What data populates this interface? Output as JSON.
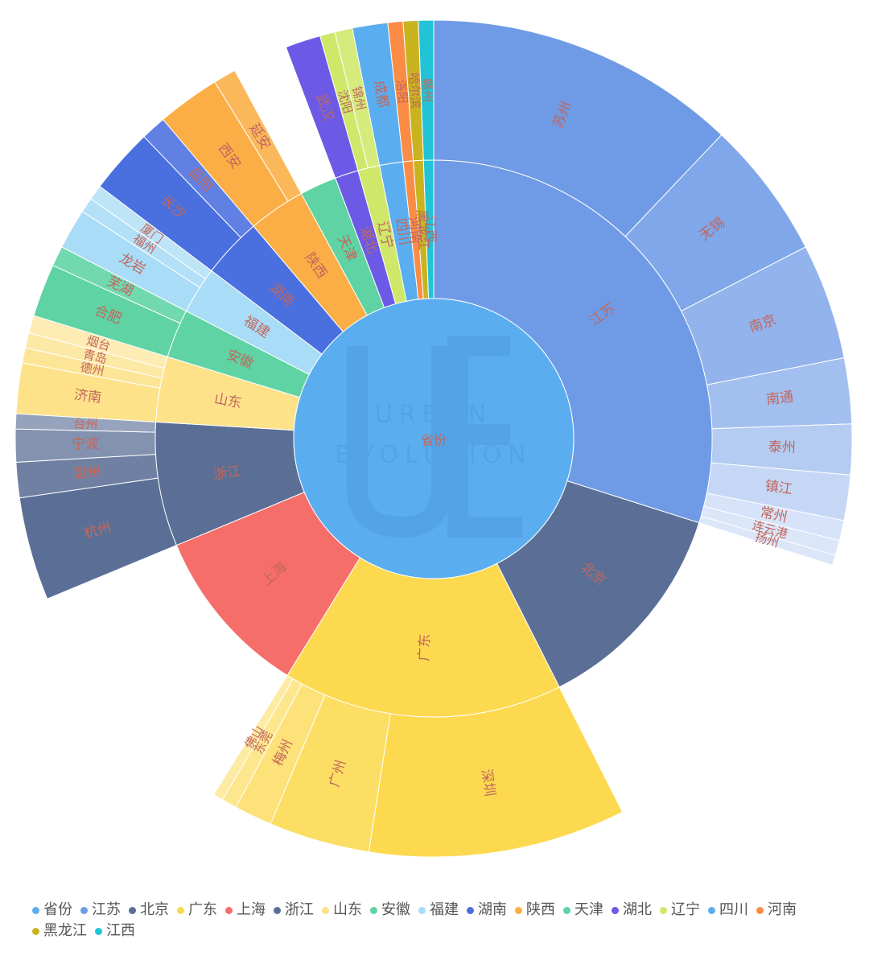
{
  "chart_data": {
    "type": "sunburst",
    "root": {
      "name": "省份",
      "color": "#5aaef0"
    },
    "watermark": {
      "lines": [
        "URBAN",
        "EVOLUTION"
      ]
    },
    "provinces": [
      {
        "name": "江苏",
        "value": 30.7,
        "color": "#6f9be6",
        "children": [
          {
            "name": "苏州",
            "value": 12.4
          },
          {
            "name": "无锡",
            "value": 5.5
          },
          {
            "name": "南京",
            "value": 4.6
          },
          {
            "name": "南通",
            "value": 2.6
          },
          {
            "name": "泰州",
            "value": 2.0
          },
          {
            "name": "镇江",
            "value": 1.8
          },
          {
            "name": "常州",
            "value": 0.8
          },
          {
            "name": "连云港",
            "value": 0.6
          },
          {
            "name": "扬州",
            "value": 0.4
          }
        ]
      },
      {
        "name": "北京",
        "value": 13.0,
        "color": "#5b6f96",
        "children": []
      },
      {
        "name": "广东",
        "value": 16.7,
        "color": "#fcd94f",
        "children": [
          {
            "name": "深圳",
            "value": 10.2
          },
          {
            "name": "广州",
            "value": 4.0
          },
          {
            "name": "梅州",
            "value": 1.5
          },
          {
            "name": "东莞",
            "value": 0.6
          },
          {
            "name": "佛山",
            "value": 0.4
          }
        ]
      },
      {
        "name": "上海",
        "value": 10.2,
        "color": "#f56e6a",
        "children": []
      },
      {
        "name": "浙江",
        "value": 7.4,
        "color": "#5b6f96",
        "children": [
          {
            "name": "杭州",
            "value": 4.1
          },
          {
            "name": "温州",
            "value": 1.4
          },
          {
            "name": "宁波",
            "value": 1.3
          },
          {
            "name": "台州",
            "value": 0.6
          }
        ]
      },
      {
        "name": "山东",
        "value": 3.9,
        "color": "#fde28a",
        "children": [
          {
            "name": "济南",
            "value": 2.0
          },
          {
            "name": "德州",
            "value": 0.6
          },
          {
            "name": "青岛",
            "value": 0.6
          },
          {
            "name": "烟台",
            "value": 0.7
          }
        ]
      },
      {
        "name": "安徽",
        "value": 2.9,
        "color": "#5fd3a4",
        "children": [
          {
            "name": "合肥",
            "value": 2.1
          },
          {
            "name": "芜湖",
            "value": 0.8
          }
        ]
      },
      {
        "name": "福建",
        "value": 2.8,
        "color": "#a9dcf6",
        "children": [
          {
            "name": "龙岩",
            "value": 1.6
          },
          {
            "name": "福州",
            "value": 0.6
          },
          {
            "name": "厦门",
            "value": 0.6
          }
        ]
      },
      {
        "name": "湖南",
        "value": 3.6,
        "color": "#4a6fdf",
        "children": [
          {
            "name": "长沙",
            "value": 2.6
          },
          {
            "name": "益阳",
            "value": 1.0
          }
        ]
      },
      {
        "name": "陕西",
        "value": 3.4,
        "color": "#fbae45",
        "children": [
          {
            "name": "西安",
            "value": 2.5
          },
          {
            "name": "延安",
            "value": 0.9
          }
        ]
      },
      {
        "name": "天津",
        "value": 2.2,
        "color": "#5fd3a4",
        "children": []
      },
      {
        "name": "湖北",
        "value": 1.4,
        "color": "#6c5ae6",
        "children": [
          {
            "name": "武汉",
            "value": 1.4
          }
        ]
      },
      {
        "name": "辽宁",
        "value": 1.3,
        "color": "#cfe86a",
        "children": [
          {
            "name": "沈阳",
            "value": 0.6
          },
          {
            "name": "锦州",
            "value": 0.7
          }
        ]
      },
      {
        "name": "四川",
        "value": 1.4,
        "color": "#5aaef0",
        "children": [
          {
            "name": "成都",
            "value": 1.4
          }
        ]
      },
      {
        "name": "河南",
        "value": 0.6,
        "color": "#fb8c45",
        "children": [
          {
            "name": "洛阳",
            "value": 0.6
          }
        ]
      },
      {
        "name": "黑龙江",
        "value": 0.6,
        "color": "#c9b420",
        "children": [
          {
            "name": "哈尔滨",
            "value": 0.6
          }
        ]
      },
      {
        "name": "江西",
        "value": 0.6,
        "color": "#22c3d6",
        "children": [
          {
            "name": "赣州",
            "value": 0.6
          }
        ]
      }
    ],
    "legend": [
      {
        "name": "省份",
        "color": "#5aaef0"
      },
      {
        "name": "江苏",
        "color": "#6f9be6"
      },
      {
        "name": "北京",
        "color": "#5b6f96"
      },
      {
        "name": "广东",
        "color": "#fcd94f"
      },
      {
        "name": "上海",
        "color": "#f56e6a"
      },
      {
        "name": "浙江",
        "color": "#5b6f96"
      },
      {
        "name": "山东",
        "color": "#fde28a"
      },
      {
        "name": "安徽",
        "color": "#5fd3a4"
      },
      {
        "name": "福建",
        "color": "#a9dcf6"
      },
      {
        "name": "湖南",
        "color": "#4a6fdf"
      },
      {
        "name": "陕西",
        "color": "#fbae45"
      },
      {
        "name": "天津",
        "color": "#5fd3a4"
      },
      {
        "name": "湖北",
        "color": "#6c5ae6"
      },
      {
        "name": "辽宁",
        "color": "#cfe86a"
      },
      {
        "name": "四川",
        "color": "#5aaef0"
      },
      {
        "name": "河南",
        "color": "#fb8c45"
      },
      {
        "name": "黑龙江",
        "color": "#c9b420"
      },
      {
        "name": "江西",
        "color": "#22c3d6"
      }
    ],
    "label_color": "#c0675e"
  }
}
